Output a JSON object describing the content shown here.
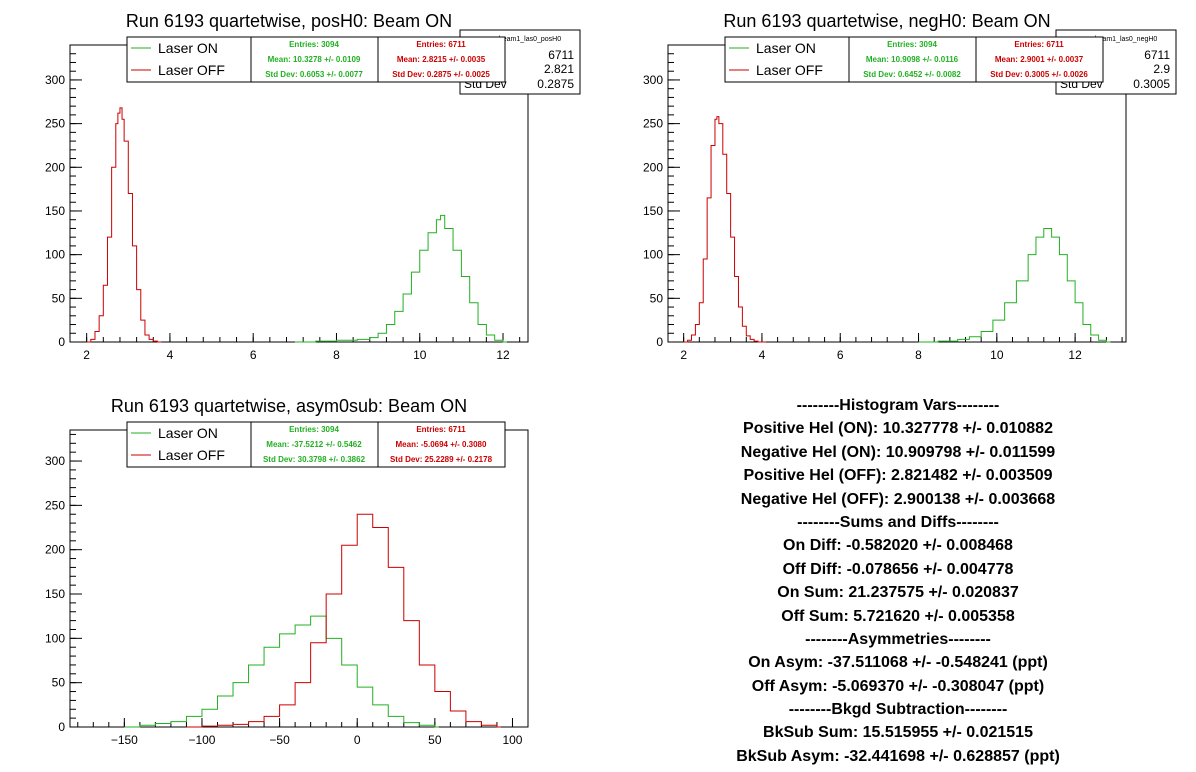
{
  "colors": {
    "on": "#22b022",
    "off": "#cc0000",
    "axis": "#000000"
  },
  "charts": [
    {
      "title": "Run 6193 quartetwise, posH0: Beam ON",
      "xlim": [
        1.6,
        12.6
      ],
      "ylim": [
        0,
        340
      ],
      "xticks": [
        2,
        4,
        6,
        8,
        10,
        12
      ],
      "yticks": [
        0,
        50,
        100,
        150,
        200,
        250,
        300
      ],
      "legend": {
        "on": "Laser ON",
        "off": "Laser OFF"
      },
      "stats_on": {
        "entries": "Entries: 3094",
        "mean": "Mean: 10.3278 +/- 0.0109",
        "std": "Std Dev: 0.6053 +/- 0.0077"
      },
      "stats_off": {
        "entries": "Entries: 6711",
        "mean": "Mean: 2.8215 +/- 0.0035",
        "std": "Std Dev: 0.2875 +/- 0.0025"
      },
      "statbox": {
        "name": "beam1_las0_posH0",
        "entries": "6711",
        "mean": "2.821",
        "stddev_label": "Std Dev",
        "stddev": "0.2875"
      }
    },
    {
      "title": "Run 6193 quartetwise, negH0: Beam ON",
      "xlim": [
        1.6,
        13.3
      ],
      "ylim": [
        0,
        340
      ],
      "xticks": [
        2,
        4,
        6,
        8,
        10,
        12
      ],
      "yticks": [
        0,
        50,
        100,
        150,
        200,
        250,
        300
      ],
      "legend": {
        "on": "Laser ON",
        "off": "Laser OFF"
      },
      "stats_on": {
        "entries": "Entries: 3094",
        "mean": "Mean: 10.9098 +/- 0.0116",
        "std": "Std Dev: 0.6452 +/- 0.0082"
      },
      "stats_off": {
        "entries": "Entries: 6711",
        "mean": "Mean: 2.9001 +/- 0.0037",
        "std": "Std Dev: 0.3005 +/- 0.0026"
      },
      "statbox": {
        "name": "beam1_las0_negH0",
        "entries": "6711",
        "mean": "2.9",
        "stddev_label": "Std Dev",
        "stddev": "0.3005"
      }
    },
    {
      "title": "Run 6193 quartetwise, asym0sub: Beam ON",
      "xlim": [
        -185,
        110
      ],
      "ylim": [
        0,
        335
      ],
      "xticks": [
        -150,
        -100,
        -50,
        0,
        50,
        100
      ],
      "yticks": [
        0,
        50,
        100,
        150,
        200,
        250,
        300
      ],
      "legend": {
        "on": "Laser ON",
        "off": "Laser OFF"
      },
      "stats_on": {
        "entries": "Entries: 3094",
        "mean": "Mean: -37.5212 +/- 0.5462",
        "std": "Std Dev: 30.3798 +/- 0.3862"
      },
      "stats_off": {
        "entries": "Entries: 6711",
        "mean": "Mean: -5.0694 +/- 0.3080",
        "std": "Std Dev: 25.2289 +/- 0.2178"
      }
    }
  ],
  "chart_data": [
    {
      "type": "line",
      "title": "Run 6193 quartetwise, posH0: Beam ON",
      "xlim": [
        1.6,
        12.6
      ],
      "ylim": [
        0,
        340
      ],
      "grid": false,
      "legend": "top-center",
      "series": [
        {
          "name": "Laser OFF",
          "x": [
            2.0,
            2.1,
            2.2,
            2.3,
            2.4,
            2.5,
            2.6,
            2.7,
            2.75,
            2.8,
            2.85,
            2.9,
            3.0,
            3.1,
            3.2,
            3.3,
            3.4,
            3.5,
            3.6,
            3.7
          ],
          "y": [
            0,
            3,
            12,
            30,
            65,
            120,
            200,
            250,
            262,
            268,
            255,
            230,
            170,
            110,
            60,
            25,
            8,
            3,
            1,
            0
          ]
        },
        {
          "name": "Laser ON",
          "x": [
            7.0,
            7.5,
            8.0,
            8.5,
            8.8,
            9.0,
            9.2,
            9.4,
            9.6,
            9.8,
            10.0,
            10.2,
            10.4,
            10.5,
            10.6,
            10.8,
            11.0,
            11.2,
            11.4,
            11.6,
            11.8,
            12.0
          ],
          "y": [
            0,
            1,
            2,
            3,
            5,
            10,
            20,
            35,
            55,
            80,
            105,
            125,
            140,
            145,
            130,
            105,
            75,
            45,
            20,
            8,
            2,
            0
          ]
        }
      ]
    },
    {
      "type": "line",
      "title": "Run 6193 quartetwise, negH0: Beam ON",
      "xlim": [
        1.6,
        13.3
      ],
      "ylim": [
        0,
        340
      ],
      "grid": false,
      "legend": "top-center",
      "series": [
        {
          "name": "Laser OFF",
          "x": [
            2.0,
            2.1,
            2.2,
            2.3,
            2.4,
            2.5,
            2.6,
            2.7,
            2.8,
            2.85,
            2.9,
            3.0,
            3.1,
            3.2,
            3.3,
            3.4,
            3.5,
            3.6,
            3.7,
            3.8,
            3.9,
            4.0
          ],
          "y": [
            0,
            2,
            8,
            20,
            45,
            95,
            165,
            225,
            255,
            258,
            250,
            215,
            170,
            120,
            75,
            40,
            18,
            7,
            3,
            1,
            0,
            0
          ]
        },
        {
          "name": "Laser ON",
          "x": [
            8.0,
            8.5,
            9.0,
            9.3,
            9.6,
            9.9,
            10.2,
            10.5,
            10.8,
            11.0,
            11.2,
            11.4,
            11.6,
            11.8,
            12.0,
            12.2,
            12.4,
            12.6,
            12.8
          ],
          "y": [
            0,
            1,
            3,
            6,
            12,
            25,
            45,
            70,
            100,
            120,
            130,
            120,
            100,
            70,
            45,
            20,
            8,
            2,
            0
          ]
        }
      ]
    },
    {
      "type": "line",
      "title": "Run 6193 quartetwise, asym0sub: Beam ON",
      "xlim": [
        -185,
        110
      ],
      "ylim": [
        0,
        335
      ],
      "grid": false,
      "legend": "top-center",
      "series": [
        {
          "name": "Laser ON",
          "x": [
            -150,
            -140,
            -130,
            -120,
            -110,
            -100,
            -90,
            -80,
            -70,
            -60,
            -50,
            -40,
            -30,
            -20,
            -10,
            0,
            10,
            20,
            30,
            40,
            50
          ],
          "y": [
            0,
            2,
            4,
            6,
            12,
            20,
            35,
            50,
            70,
            90,
            105,
            115,
            125,
            100,
            70,
            45,
            25,
            12,
            5,
            2,
            0
          ]
        },
        {
          "name": "Laser OFF",
          "x": [
            -110,
            -100,
            -90,
            -80,
            -70,
            -60,
            -50,
            -40,
            -30,
            -20,
            -10,
            0,
            10,
            20,
            30,
            40,
            50,
            60,
            70,
            80,
            90
          ],
          "y": [
            0,
            1,
            2,
            3,
            6,
            12,
            25,
            50,
            95,
            150,
            205,
            240,
            225,
            180,
            120,
            70,
            40,
            18,
            6,
            2,
            0
          ]
        }
      ]
    }
  ],
  "summary": [
    "--------Histogram Vars--------",
    "Positive Hel (ON): 10.327778 +/- 0.010882",
    "Negative Hel (ON): 10.909798 +/- 0.011599",
    "Positive Hel (OFF): 2.821482 +/- 0.003509",
    "Negative Hel (OFF): 2.900138 +/- 0.003668",
    "--------Sums and Diffs--------",
    "On Diff: -0.582020 +/- 0.008468",
    "Off Diff: -0.078656 +/- 0.004778",
    "On Sum: 21.237575 +/- 0.020837",
    "Off Sum: 5.721620 +/- 0.005358",
    "--------Asymmetries--------",
    "On Asym: -37.511068 +/- -0.548241 (ppt)",
    "Off Asym: -5.069370 +/- -0.308047 (ppt)",
    "--------Bkgd Subtraction--------",
    "BkSub Sum: 15.515955 +/- 0.021515",
    "BkSub Asym: -32.441698 +/- 0.628857 (ppt)"
  ]
}
